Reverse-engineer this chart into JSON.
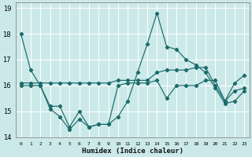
{
  "title": "",
  "xlabel": "Humidex (Indice chaleur)",
  "background_color": "#cce9e9",
  "grid_color": "#ffffff",
  "line_color": "#1a6b6b",
  "xlim": [
    -0.5,
    23.5
  ],
  "ylim": [
    14,
    19.2
  ],
  "yticks": [
    14,
    15,
    16,
    17,
    18,
    19
  ],
  "ytick_labels": [
    "14",
    "15",
    "16",
    "17",
    "18",
    "19"
  ],
  "xtick_labels": [
    "0",
    "1",
    "2",
    "3",
    "4",
    "5",
    "6",
    "7",
    "8",
    "9",
    "10",
    "11",
    "12",
    "13",
    "14",
    "15",
    "16",
    "17",
    "18",
    "19",
    "20",
    "21",
    "22",
    "23"
  ],
  "series": [
    [
      18.0,
      16.6,
      16.0,
      15.1,
      14.8,
      14.3,
      14.7,
      14.4,
      14.5,
      14.5,
      14.8,
      15.4,
      16.5,
      17.6,
      18.8,
      17.5,
      17.4,
      17.0,
      16.8,
      16.5,
      15.9,
      15.3,
      15.4,
      15.8
    ],
    [
      16.0,
      16.0,
      16.0,
      15.2,
      15.2,
      14.4,
      15.0,
      14.4,
      14.5,
      14.5,
      16.0,
      16.1,
      16.1,
      16.1,
      16.2,
      15.5,
      16.0,
      16.0,
      16.0,
      16.2,
      16.2,
      15.4,
      16.1,
      16.4
    ],
    [
      16.1,
      16.1,
      16.1,
      16.1,
      16.1,
      16.1,
      16.1,
      16.1,
      16.1,
      16.1,
      16.2,
      16.2,
      16.2,
      16.2,
      16.5,
      16.6,
      16.6,
      16.6,
      16.7,
      16.7,
      16.0,
      15.4,
      15.8,
      15.9
    ]
  ]
}
